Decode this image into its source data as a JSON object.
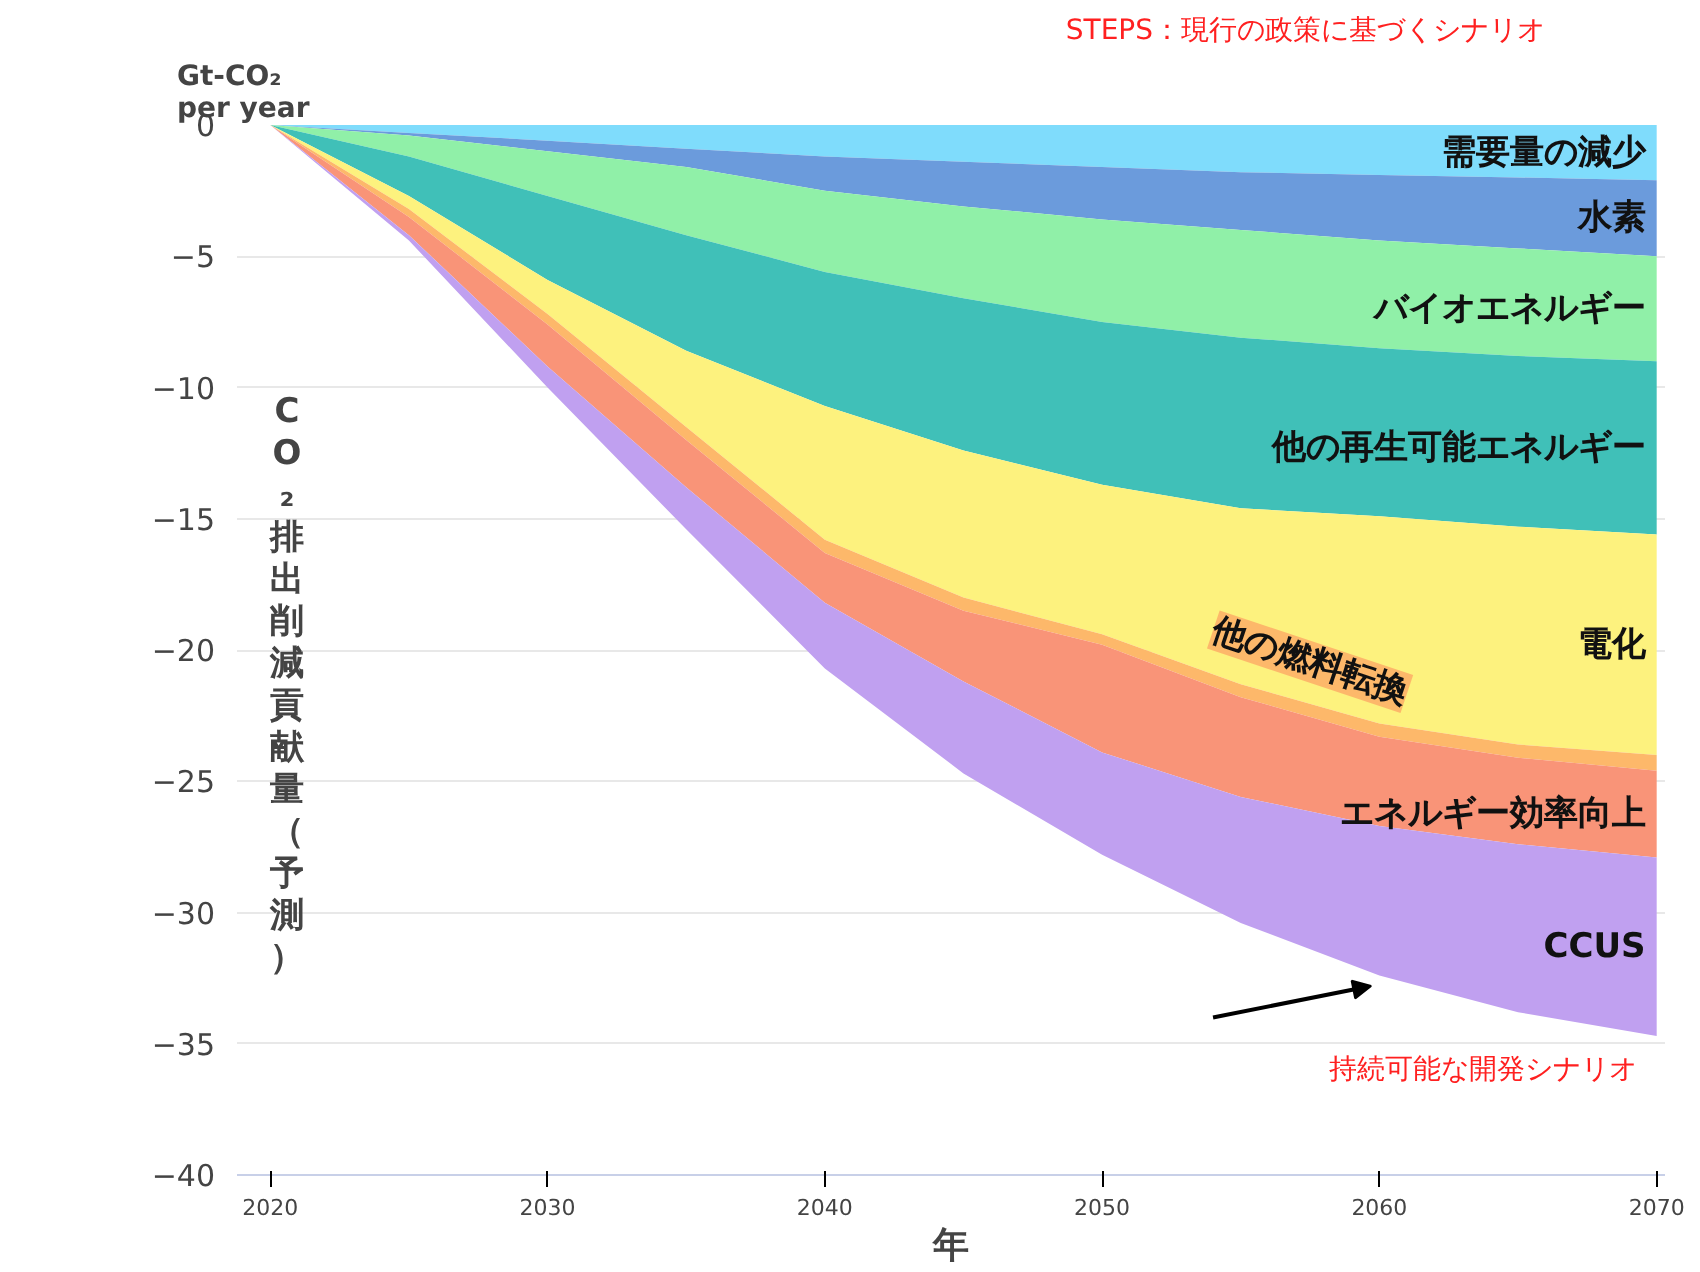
{
  "chart_data": {
    "type": "area",
    "stacked": true,
    "xlabel": "年",
    "ylabel": "CO₂排出削減貢献量（予測）",
    "x": [
      2020,
      2025,
      2030,
      2035,
      2040,
      2045,
      2050,
      2055,
      2060,
      2065,
      2070
    ],
    "xlim": [
      2018.8,
      2070.3
    ],
    "xticks": [
      2020,
      2030,
      2040,
      2050,
      2060,
      2070
    ],
    "ylim": [
      -40,
      0
    ],
    "yticks": [
      0,
      -5,
      -10,
      -15,
      -20,
      -25,
      -30,
      -35,
      -40
    ],
    "grid": "y",
    "series": [
      {
        "name": "需要量の減少",
        "color": "#7fdcfc",
        "values": [
          0,
          -0.3,
          -0.6,
          -0.9,
          -1.2,
          -1.4,
          -1.6,
          -1.8,
          -1.9,
          -2.0,
          -2.1
        ]
      },
      {
        "name": "水素",
        "color": "#6b9bdc",
        "values": [
          0,
          -0.1,
          -0.4,
          -0.7,
          -1.3,
          -1.7,
          -2.0,
          -2.2,
          -2.5,
          -2.7,
          -2.9
        ]
      },
      {
        "name": "バイオエネルギー",
        "color": "#90f0a8",
        "values": [
          0,
          -0.8,
          -1.7,
          -2.6,
          -3.1,
          -3.5,
          -3.9,
          -4.1,
          -4.1,
          -4.1,
          -4.0
        ]
      },
      {
        "name": "他の再生可能エネルギー",
        "color": "#40c0b8",
        "values": [
          0,
          -1.5,
          -3.2,
          -4.4,
          -5.1,
          -5.8,
          -6.2,
          -6.5,
          -6.4,
          -6.5,
          -6.6
        ]
      },
      {
        "name": "電化",
        "color": "#fdf27e",
        "values": [
          0,
          -0.5,
          -1.3,
          -2.9,
          -5.1,
          -5.6,
          -5.7,
          -6.7,
          -7.9,
          -8.3,
          -8.4
        ]
      },
      {
        "name": "他の燃料転換",
        "color": "#fdb86a",
        "values": [
          0,
          -0.3,
          -0.4,
          -0.5,
          -0.5,
          -0.5,
          -0.4,
          -0.5,
          -0.5,
          -0.5,
          -0.6
        ]
      },
      {
        "name": "エネルギー効率向上",
        "color": "#f99478",
        "values": [
          0,
          -0.7,
          -1.6,
          -1.8,
          -1.9,
          -2.7,
          -4.1,
          -3.8,
          -3.4,
          -3.3,
          -3.3
        ]
      },
      {
        "name": "CCUS",
        "color": "#c0a0f0",
        "values": [
          0,
          -0.2,
          -0.8,
          -1.6,
          -2.5,
          -3.5,
          -3.9,
          -4.8,
          -5.7,
          -6.4,
          -6.8
        ]
      }
    ],
    "annotations": [
      "Gt-CO₂ per year",
      "STEPS：現行の政策に基づくシナリオ",
      "持続可能な開発シナリオ"
    ]
  }
}
